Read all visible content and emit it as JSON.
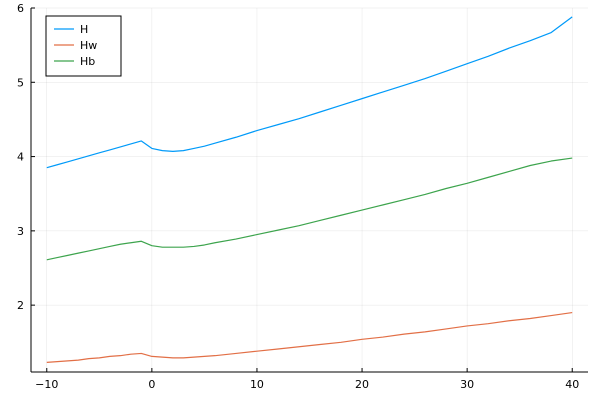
{
  "chart_data": {
    "type": "line",
    "title": "",
    "xlabel": "",
    "ylabel": "",
    "xlim": [
      -11.5,
      41.5
    ],
    "ylim": [
      1.1,
      6.0
    ],
    "xticks": [
      -10,
      0,
      10,
      20,
      30,
      40
    ],
    "xtick_labels": [
      "−10",
      "0",
      "10",
      "20",
      "30",
      "40"
    ],
    "yticks": [
      2,
      3,
      4,
      5,
      6
    ],
    "ytick_labels": [
      "2",
      "3",
      "4",
      "5",
      "6"
    ],
    "grid": true,
    "legend_position": "top-left",
    "series": [
      {
        "name": "H",
        "color": "#009af9",
        "x": [
          -10,
          -9,
          -8,
          -7,
          -6,
          -5,
          -4,
          -3,
          -2,
          -1,
          0,
          1,
          2,
          3,
          4,
          5,
          6,
          8,
          10,
          12,
          14,
          16,
          18,
          20,
          22,
          24,
          26,
          28,
          30,
          32,
          34,
          36,
          38,
          40
        ],
        "y": [
          3.85,
          3.89,
          3.93,
          3.97,
          4.01,
          4.05,
          4.09,
          4.13,
          4.17,
          4.21,
          4.11,
          4.08,
          4.07,
          4.08,
          4.11,
          4.14,
          4.18,
          4.26,
          4.35,
          4.43,
          4.51,
          4.6,
          4.69,
          4.78,
          4.87,
          4.96,
          5.05,
          5.15,
          5.25,
          5.35,
          5.46,
          5.56,
          5.67,
          5.88
        ]
      },
      {
        "name": "Hw",
        "color": "#e26f46",
        "x": [
          -10,
          -9,
          -8,
          -7,
          -6,
          -5,
          -4,
          -3,
          -2,
          -1,
          0,
          1,
          2,
          3,
          4,
          5,
          6,
          8,
          10,
          12,
          14,
          16,
          18,
          20,
          22,
          24,
          26,
          28,
          30,
          32,
          34,
          36,
          38,
          40
        ],
        "y": [
          1.23,
          1.24,
          1.25,
          1.26,
          1.28,
          1.29,
          1.31,
          1.32,
          1.34,
          1.35,
          1.31,
          1.3,
          1.29,
          1.29,
          1.3,
          1.31,
          1.32,
          1.35,
          1.38,
          1.41,
          1.44,
          1.47,
          1.5,
          1.54,
          1.57,
          1.61,
          1.64,
          1.68,
          1.72,
          1.75,
          1.79,
          1.82,
          1.86,
          1.9
        ]
      },
      {
        "name": "Hb",
        "color": "#3da44d",
        "x": [
          -10,
          -9,
          -8,
          -7,
          -6,
          -5,
          -4,
          -3,
          -2,
          -1,
          0,
          1,
          2,
          3,
          4,
          5,
          6,
          8,
          10,
          12,
          14,
          16,
          18,
          20,
          22,
          24,
          26,
          28,
          30,
          32,
          34,
          36,
          38,
          40
        ],
        "y": [
          2.61,
          2.64,
          2.67,
          2.7,
          2.73,
          2.76,
          2.79,
          2.82,
          2.84,
          2.86,
          2.8,
          2.78,
          2.78,
          2.78,
          2.79,
          2.81,
          2.84,
          2.89,
          2.95,
          3.01,
          3.07,
          3.14,
          3.21,
          3.28,
          3.35,
          3.42,
          3.49,
          3.57,
          3.64,
          3.72,
          3.8,
          3.88,
          3.94,
          3.98
        ]
      }
    ]
  }
}
